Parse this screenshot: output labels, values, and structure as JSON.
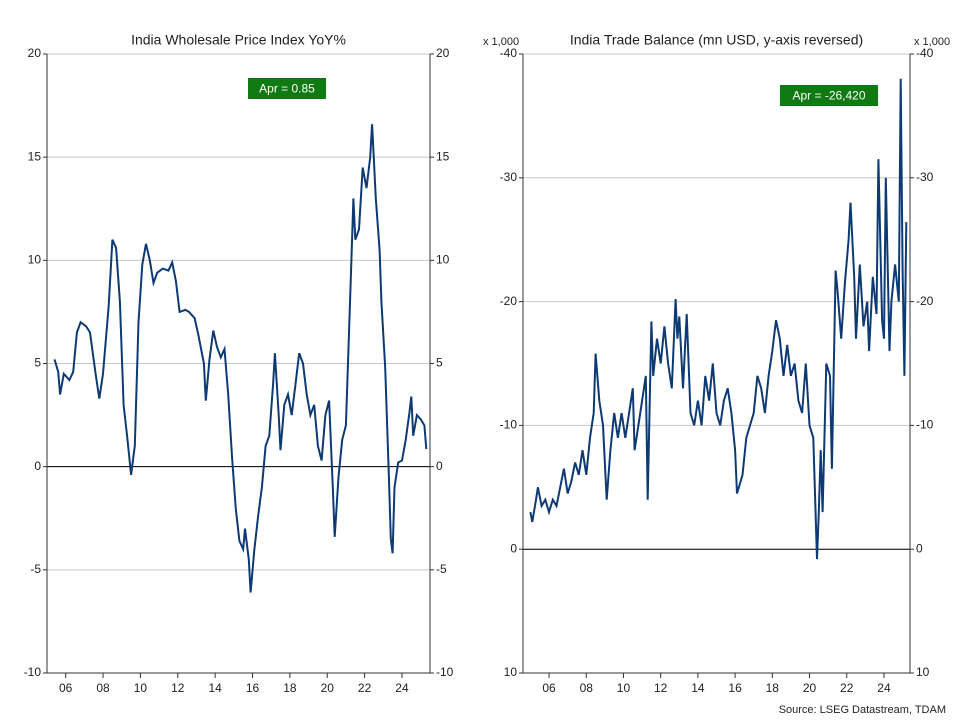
{
  "chart_data": [
    {
      "type": "line",
      "title": "India Wholesale Price Index YoY%",
      "annotation": "Apr  = 0.85",
      "xlim": [
        2005,
        2025.5
      ],
      "ylim": [
        -10,
        20
      ],
      "yticks": [
        -10,
        -5,
        0,
        5,
        10,
        15,
        20
      ],
      "xticks": [
        {
          "value": 2006,
          "label": "06"
        },
        {
          "value": 2008,
          "label": "08"
        },
        {
          "value": 2010,
          "label": "10"
        },
        {
          "value": 2012,
          "label": "12"
        },
        {
          "value": 2014,
          "label": "14"
        },
        {
          "value": 2016,
          "label": "16"
        },
        {
          "value": 2018,
          "label": "18"
        },
        {
          "value": 2020,
          "label": "20"
        },
        {
          "value": 2022,
          "label": "22"
        },
        {
          "value": 2024,
          "label": "24"
        }
      ],
      "grid": true,
      "inverted": false,
      "x": [
        2005.4,
        2005.6,
        2005.7,
        2005.9,
        2006.2,
        2006.4,
        2006.6,
        2006.8,
        2007.1,
        2007.3,
        2007.6,
        2007.8,
        2008.0,
        2008.3,
        2008.5,
        2008.7,
        2008.9,
        2009.1,
        2009.3,
        2009.5,
        2009.7,
        2009.9,
        2010.1,
        2010.3,
        2010.5,
        2010.7,
        2010.9,
        2011.2,
        2011.5,
        2011.7,
        2011.9,
        2012.1,
        2012.4,
        2012.6,
        2012.9,
        2013.1,
        2013.4,
        2013.5,
        2013.7,
        2013.9,
        2014.1,
        2014.3,
        2014.5,
        2014.7,
        2014.9,
        2015.1,
        2015.3,
        2015.5,
        2015.6,
        2015.8,
        2015.9,
        2016.1,
        2016.3,
        2016.5,
        2016.7,
        2016.9,
        2017.1,
        2017.2,
        2017.4,
        2017.5,
        2017.7,
        2017.9,
        2018.1,
        2018.3,
        2018.5,
        2018.7,
        2018.9,
        2019.1,
        2019.3,
        2019.5,
        2019.7,
        2019.9,
        2020.1,
        2020.3,
        2020.4,
        2020.6,
        2020.8,
        2021.0,
        2021.2,
        2021.4,
        2021.5,
        2021.7,
        2021.9,
        2022.1,
        2022.3,
        2022.4,
        2022.6,
        2022.8,
        2022.9,
        2023.1,
        2023.3,
        2023.4,
        2023.5,
        2023.6,
        2023.8,
        2024.0,
        2024.2,
        2024.4,
        2024.5,
        2024.6,
        2024.8,
        2025.0,
        2025.2,
        2025.3
      ],
      "series": [
        {
          "name": "WPI YoY%",
          "color": "#0d3a73",
          "values": [
            5.2,
            4.6,
            3.5,
            4.5,
            4.2,
            4.6,
            6.5,
            7.0,
            6.8,
            6.5,
            4.5,
            3.3,
            4.5,
            7.8,
            11.0,
            10.6,
            8.0,
            3.0,
            1.4,
            -0.4,
            1.0,
            7.0,
            9.8,
            10.8,
            10.0,
            8.9,
            9.4,
            9.6,
            9.5,
            9.9,
            9.0,
            7.5,
            7.6,
            7.5,
            7.2,
            6.4,
            5.0,
            3.2,
            5.2,
            6.6,
            5.8,
            5.3,
            5.7,
            3.5,
            0.5,
            -2.0,
            -3.6,
            -4.0,
            -3.0,
            -4.5,
            -6.1,
            -4.0,
            -2.4,
            -1.0,
            1.0,
            1.5,
            4.0,
            5.5,
            2.5,
            0.8,
            3.0,
            3.5,
            2.5,
            4.0,
            5.5,
            5.0,
            3.5,
            2.5,
            3.0,
            1.0,
            0.3,
            2.5,
            3.2,
            -1.0,
            -3.4,
            -0.5,
            1.3,
            2.0,
            7.5,
            13.0,
            11.0,
            11.5,
            14.5,
            13.5,
            15.0,
            16.6,
            13.0,
            10.5,
            8.0,
            4.8,
            -0.5,
            -3.5,
            -4.2,
            -1.0,
            0.2,
            0.3,
            1.3,
            2.6,
            3.4,
            1.5,
            2.5,
            2.3,
            2.0,
            0.85
          ]
        }
      ]
    },
    {
      "type": "line",
      "title": "India Trade Balance (mn USD, y-axis reversed)",
      "annotation": "Apr  = -26,420",
      "y_unit": "x 1,000",
      "xlim": [
        2004.6,
        2025.4
      ],
      "ylim": [
        -40,
        10
      ],
      "yticks": [
        -40,
        -30,
        -20,
        -10,
        0,
        10
      ],
      "xticks": [
        {
          "value": 2006,
          "label": "06"
        },
        {
          "value": 2008,
          "label": "08"
        },
        {
          "value": 2010,
          "label": "10"
        },
        {
          "value": 2012,
          "label": "12"
        },
        {
          "value": 2014,
          "label": "14"
        },
        {
          "value": 2016,
          "label": "16"
        },
        {
          "value": 2018,
          "label": "18"
        },
        {
          "value": 2020,
          "label": "20"
        },
        {
          "value": 2022,
          "label": "22"
        },
        {
          "value": 2024,
          "label": "24"
        }
      ],
      "grid": true,
      "inverted": true,
      "x": [
        2005.0,
        2005.1,
        2005.3,
        2005.4,
        2005.6,
        2005.8,
        2006.0,
        2006.2,
        2006.4,
        2006.6,
        2006.8,
        2007.0,
        2007.2,
        2007.4,
        2007.6,
        2007.8,
        2008.0,
        2008.2,
        2008.4,
        2008.5,
        2008.7,
        2008.9,
        2009.1,
        2009.3,
        2009.5,
        2009.7,
        2009.9,
        2010.1,
        2010.3,
        2010.5,
        2010.6,
        2010.8,
        2011.0,
        2011.2,
        2011.3,
        2011.5,
        2011.6,
        2011.8,
        2012.0,
        2012.2,
        2012.4,
        2012.6,
        2012.8,
        2012.9,
        2013.0,
        2013.2,
        2013.4,
        2013.6,
        2013.8,
        2014.0,
        2014.2,
        2014.4,
        2014.6,
        2014.8,
        2015.0,
        2015.2,
        2015.4,
        2015.6,
        2015.8,
        2016.0,
        2016.1,
        2016.4,
        2016.6,
        2016.8,
        2017.0,
        2017.2,
        2017.4,
        2017.6,
        2017.8,
        2018.0,
        2018.2,
        2018.4,
        2018.6,
        2018.8,
        2019.0,
        2019.2,
        2019.4,
        2019.6,
        2019.8,
        2020.0,
        2020.2,
        2020.4,
        2020.5,
        2020.6,
        2020.7,
        2020.9,
        2021.1,
        2021.2,
        2021.4,
        2021.5,
        2021.7,
        2021.9,
        2022.1,
        2022.2,
        2022.4,
        2022.5,
        2022.7,
        2022.9,
        2023.1,
        2023.2,
        2023.4,
        2023.6,
        2023.7,
        2023.9,
        2024.0,
        2024.1,
        2024.3,
        2024.4,
        2024.6,
        2024.8,
        2024.9,
        2025.0,
        2025.1,
        2025.2
      ],
      "series": [
        {
          "name": "Trade Balance",
          "color": "#0d3a73",
          "values": [
            -3,
            -2.2,
            -4,
            -5,
            -3.5,
            -4,
            -3,
            -4,
            -3.5,
            -5,
            -6.5,
            -4.5,
            -5.5,
            -7,
            -6,
            -8,
            -6,
            -9,
            -11,
            -15.8,
            -12,
            -10,
            -4,
            -8,
            -11,
            -9,
            -11,
            -9,
            -11,
            -13,
            -8,
            -10,
            -12,
            -14,
            -4,
            -18.4,
            -14,
            -17,
            -15,
            -18,
            -15,
            -13,
            -20.2,
            -17,
            -18.8,
            -13,
            -19,
            -11,
            -10,
            -12,
            -10,
            -14,
            -12,
            -15,
            -11,
            -10,
            -12,
            -13,
            -11,
            -8,
            -4.5,
            -6,
            -9,
            -10,
            -11,
            -14,
            -13,
            -11,
            -14,
            -16,
            -18.5,
            -17,
            -14,
            -16.5,
            -14,
            -15,
            -12,
            -11,
            -15,
            -10,
            -9,
            0.8,
            -3,
            -8,
            -3,
            -15,
            -14,
            -6.5,
            -22.5,
            -21,
            -17,
            -21.5,
            -25,
            -28,
            -22,
            -17,
            -23,
            -18,
            -20,
            -16,
            -22,
            -19,
            -31.5,
            -18.5,
            -17,
            -30,
            -16,
            -20,
            -23,
            -20,
            -38,
            -22.5,
            -14,
            -26.42
          ]
        }
      ]
    }
  ],
  "source": "Source: LSEG Datastream, TDAM"
}
